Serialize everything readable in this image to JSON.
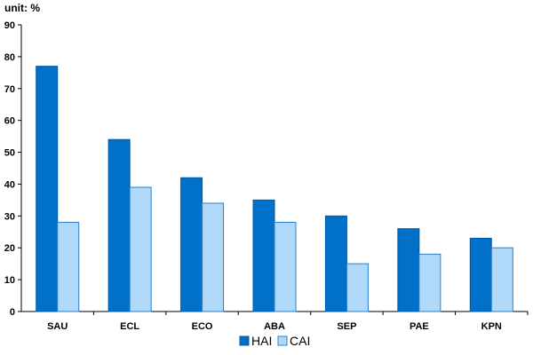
{
  "chart_data": {
    "type": "bar",
    "unit_label": "unit: %",
    "categories": [
      "SAU",
      "ECL",
      "ECO",
      "ABA",
      "SEP",
      "PAE",
      "KPN"
    ],
    "series": [
      {
        "name": "HAI",
        "color": "#0070C8",
        "values": [
          77,
          54,
          42,
          35,
          30,
          26,
          23
        ]
      },
      {
        "name": "CAI",
        "color": "#B0D8F8",
        "values": [
          28,
          39,
          34,
          28,
          15,
          18,
          20
        ]
      }
    ],
    "ylim": [
      0,
      90
    ],
    "yticks": [
      0,
      10,
      20,
      30,
      40,
      50,
      60,
      70,
      80,
      90
    ],
    "grid": false,
    "legend": "bottom-center"
  }
}
